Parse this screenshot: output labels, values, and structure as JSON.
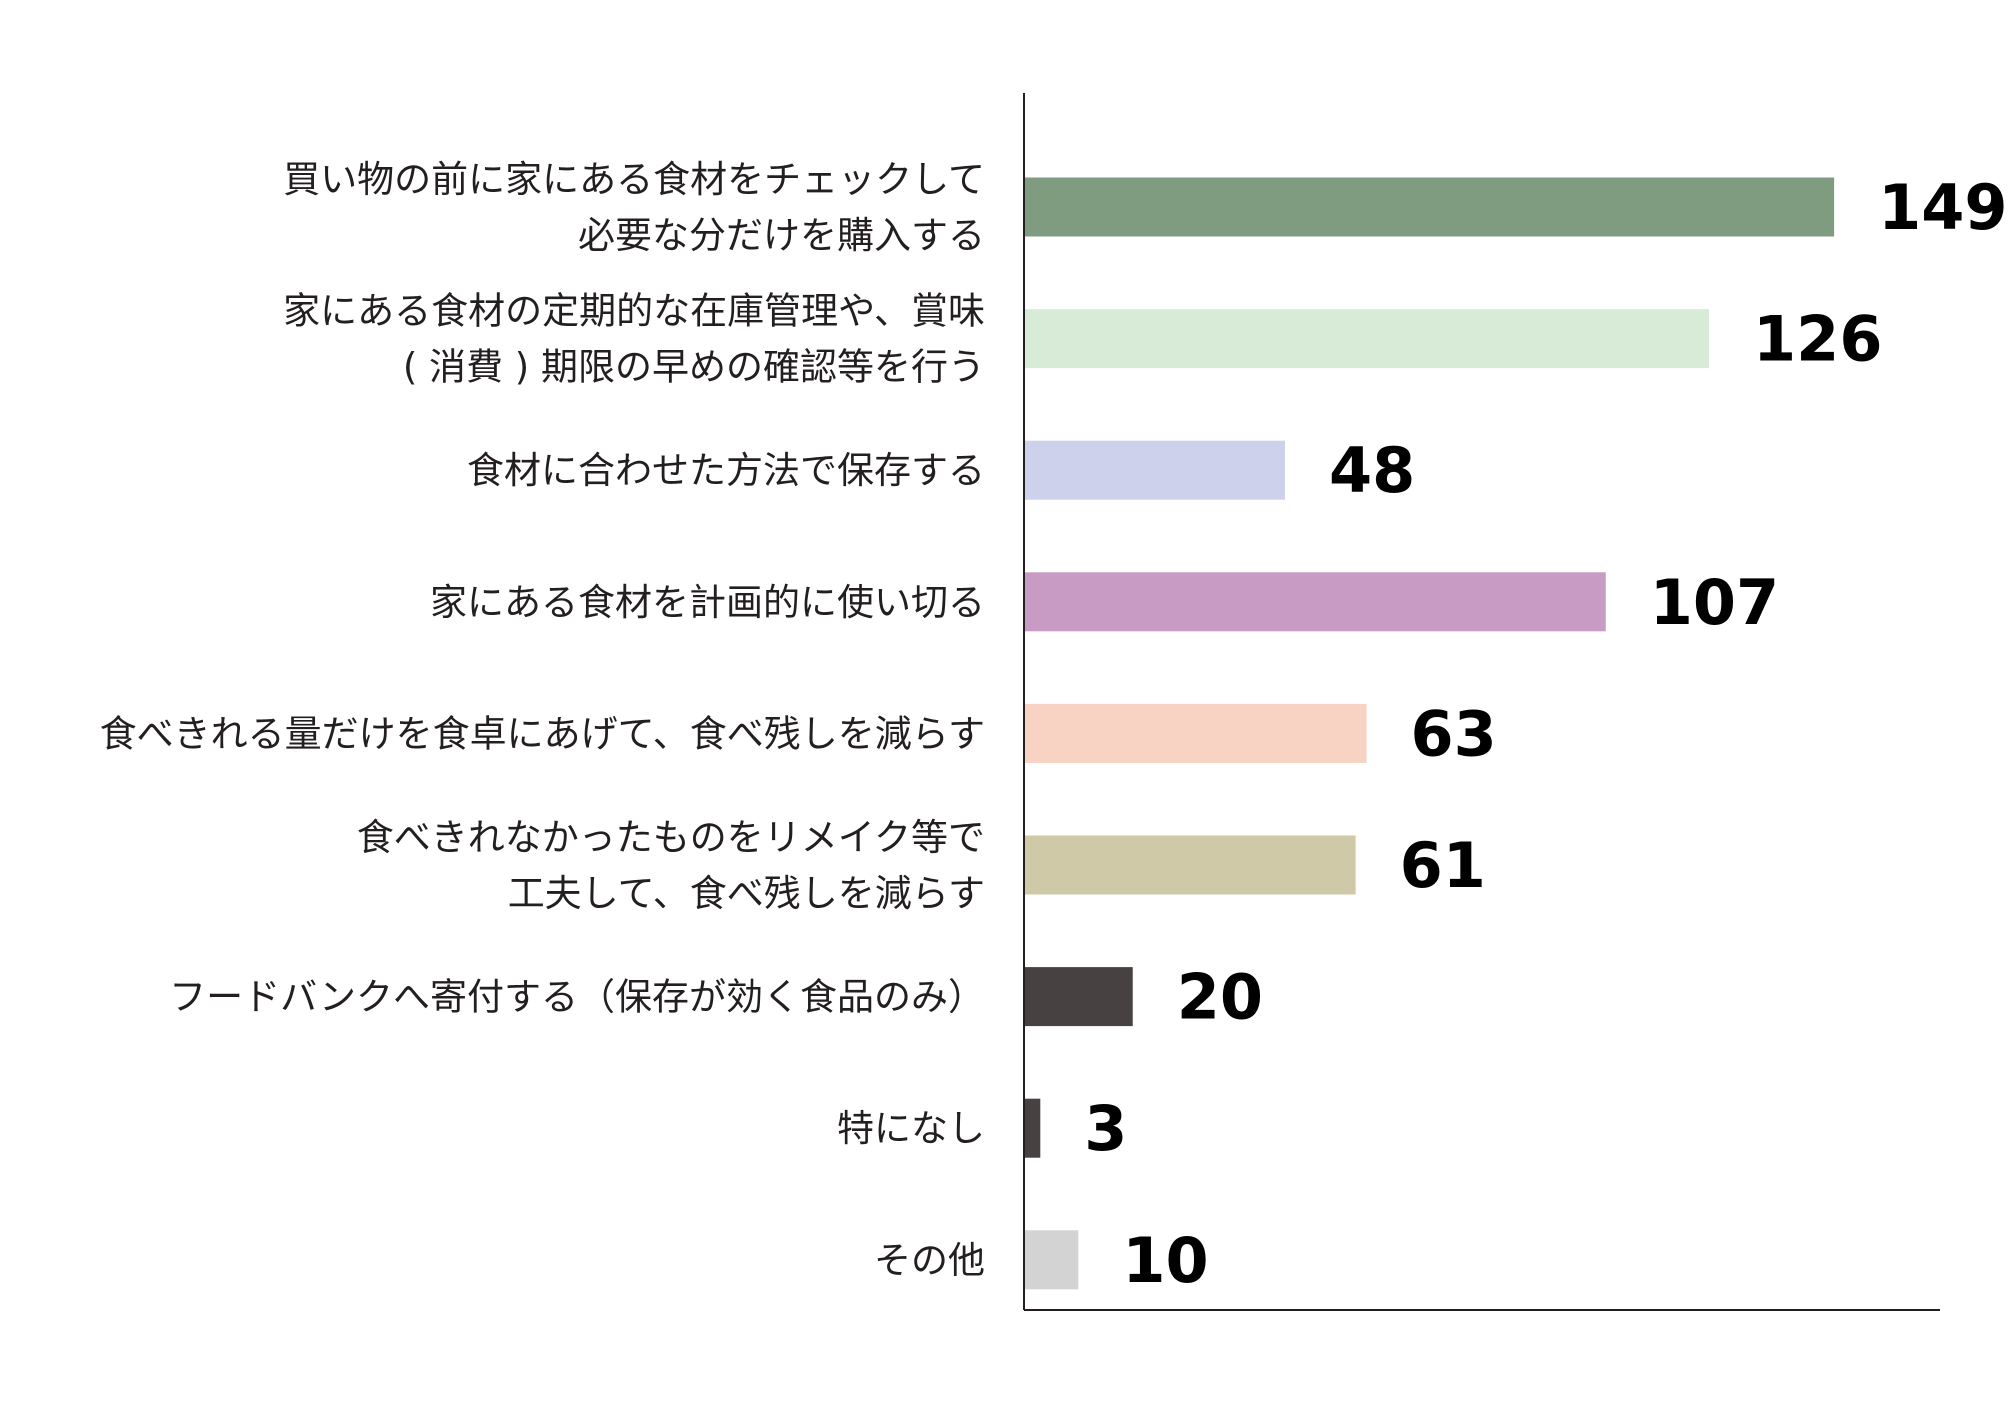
{
  "chart_data": {
    "type": "bar",
    "orientation": "horizontal",
    "title": "",
    "xlabel": "",
    "ylabel": "",
    "xlim": [
      0,
      150
    ],
    "grid": false,
    "legend": "none",
    "categories": [
      [
        "買い物の前に家にある食材をチェックして",
        "必要な分だけを購入する"
      ],
      [
        "家にある食材の定期的な在庫管理や、賞味",
        "( 消費 ) 期限の早めの確認等を行う"
      ],
      [
        "食材に合わせた方法で保存する"
      ],
      [
        "家にある食材を計画的に使い切る"
      ],
      [
        "食べきれる量だけを食卓にあげて、食べ残しを減らす"
      ],
      [
        "食べきれなかったものをリメイク等で",
        "工夫して、食べ残しを減らす"
      ],
      [
        "フードバンクへ寄付する（保存が効く食品のみ）"
      ],
      [
        "特になし"
      ],
      [
        "その他"
      ]
    ],
    "values": [
      149,
      126,
      48,
      107,
      63,
      61,
      20,
      3,
      10
    ],
    "value_labels": [
      "149",
      "126",
      "48",
      "107",
      "63",
      "61",
      "20",
      "3",
      "10"
    ],
    "colors": [
      "#7f9b80",
      "#d7ebd7",
      "#cdd1ec",
      "#c89bc5",
      "#f8d2c2",
      "#d0c9a8",
      "#474142",
      "#474142",
      "#d3d3d4"
    ]
  }
}
